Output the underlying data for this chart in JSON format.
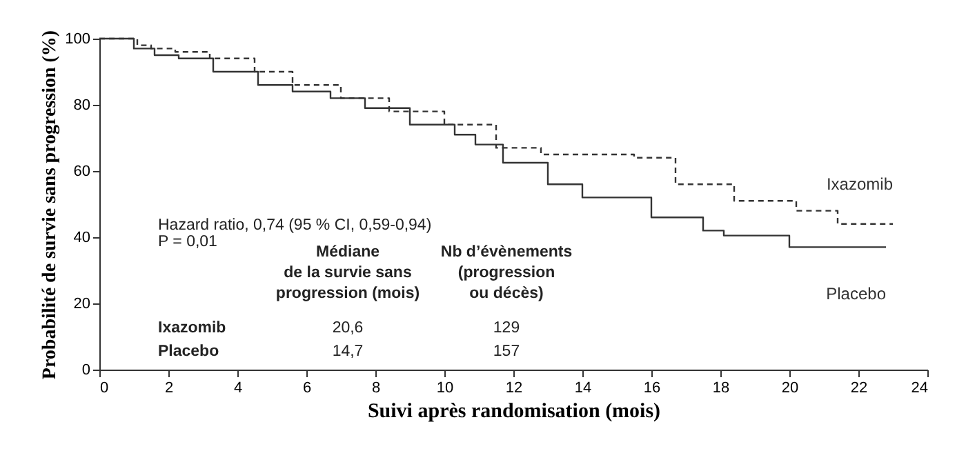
{
  "chart_data": {
    "type": "step",
    "xlabel": "Suivi après randomisation (mois)",
    "ylabel": "Probabilité de survie sans progression (%)",
    "xlim": [
      0,
      24
    ],
    "xticks": [
      0,
      2,
      4,
      6,
      8,
      10,
      12,
      14,
      16,
      18,
      20,
      22,
      24
    ],
    "ylim": [
      0,
      100
    ],
    "yticks": [
      0,
      20,
      40,
      60,
      80,
      100
    ],
    "grid": false,
    "marker": "none",
    "series": [
      {
        "name": "Ixazomib",
        "color": "#333333",
        "line_style": "dashed",
        "x": [
          0,
          1.1,
          1.5,
          2.2,
          3.2,
          4.5,
          5.6,
          7.0,
          8.4,
          10.0,
          11.5,
          12.8,
          15.5,
          16.7,
          18.4,
          20.2,
          21.4,
          23.0
        ],
        "values": [
          100,
          98,
          97,
          96,
          94,
          90,
          86,
          82,
          78,
          74,
          67,
          65,
          64,
          56,
          51,
          48,
          44,
          44
        ]
      },
      {
        "name": "Placebo",
        "color": "#333333",
        "line_style": "solid",
        "x": [
          0,
          1.0,
          1.6,
          2.3,
          3.3,
          4.6,
          5.6,
          6.7,
          7.7,
          9.0,
          10.3,
          10.9,
          11.7,
          13.0,
          14.0,
          16.0,
          17.5,
          18.1,
          20.0,
          22.8
        ],
        "values": [
          100,
          97,
          95,
          94,
          90,
          86,
          84,
          82,
          79,
          74,
          71,
          68,
          62.5,
          56,
          52,
          46,
          42,
          40.5,
          37,
          37
        ]
      }
    ],
    "annotations": [
      "Hazard ratio, 0,74 (95 % CI, 0,59-0,94)",
      "P = 0,01",
      "Médiane\nde la survie sans\nprogression (mois)",
      "Nb d’évènements\n(progression\nou décès)",
      "Ixazomib",
      "20,6",
      "129",
      "Placebo",
      "14,7",
      "157"
    ]
  }
}
